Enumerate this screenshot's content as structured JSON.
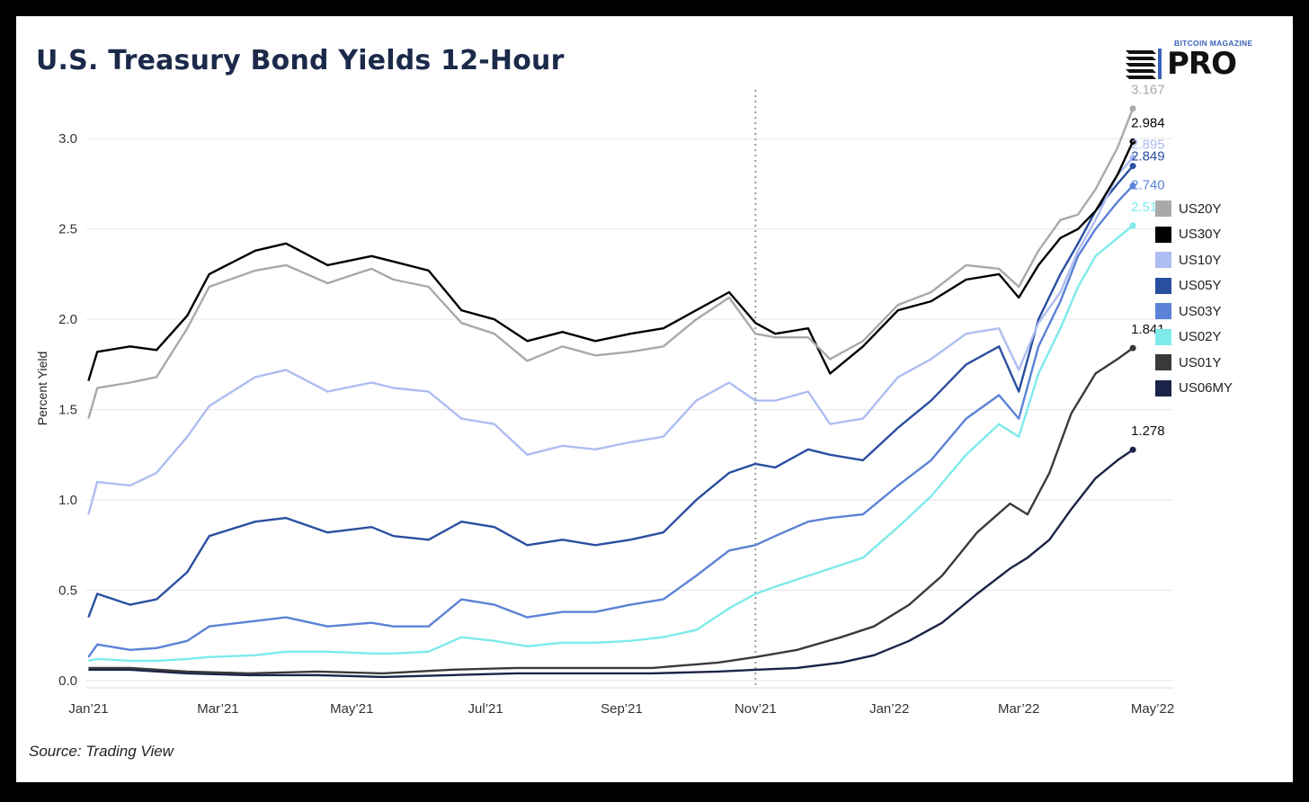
{
  "title": "U.S. Treasury Bond Yields 12-Hour",
  "source": "Source: Trading View",
  "logo": {
    "small_text": "BITCOIN MAGAZINE",
    "big_text": "PRO"
  },
  "colors": {
    "US20Y": "#a9a9a9",
    "US30Y": "#000000",
    "US10Y": "#aebdf2",
    "US05Y": "#2a4fa0",
    "US03Y": "#5b82d6",
    "US02Y": "#7eeaea",
    "US01Y": "#3a3a3a",
    "US06MY": "#1b2448"
  },
  "chart_data": {
    "type": "line",
    "title": "U.S. Treasury Bond Yields 12-Hour",
    "xlabel": "",
    "ylabel": "Percent Yield",
    "ylim": [
      -0.04,
      3.27
    ],
    "yticks": [
      0.0,
      0.5,
      1.0,
      1.5,
      2.0,
      2.5,
      3.0
    ],
    "ytick_labels": [
      "0.0",
      "0.5",
      "1.0",
      "1.5",
      "2.0",
      "2.5",
      "3.0"
    ],
    "xlim": [
      "2020-12-31",
      "2022-05-10"
    ],
    "xticks": [
      "2021-01-01",
      "2021-03-01",
      "2021-05-01",
      "2021-07-01",
      "2021-09-01",
      "2021-11-01",
      "2022-01-01",
      "2022-03-01",
      "2022-05-01"
    ],
    "xtick_labels": [
      "Jan’21",
      "Mar’21",
      "May’21",
      "Jul’21",
      "Sep’21",
      "Nov’21",
      "Jan’22",
      "Mar’22",
      "May’22"
    ],
    "vline": "2021-11-01",
    "grid": true,
    "legend": "right",
    "series": [
      {
        "name": "US20Y",
        "end_label": "3.167",
        "x": [
          "2021-01-01",
          "2021-01-05",
          "2021-01-20",
          "2021-02-01",
          "2021-02-15",
          "2021-02-25",
          "2021-03-18",
          "2021-04-01",
          "2021-04-20",
          "2021-05-10",
          "2021-05-20",
          "2021-06-05",
          "2021-06-20",
          "2021-07-05",
          "2021-07-20",
          "2021-08-05",
          "2021-08-20",
          "2021-09-05",
          "2021-09-20",
          "2021-10-05",
          "2021-10-20",
          "2021-11-01",
          "2021-11-10",
          "2021-11-25",
          "2021-12-05",
          "2021-12-20",
          "2022-01-05",
          "2022-01-20",
          "2022-02-05",
          "2022-02-20",
          "2022-03-01",
          "2022-03-10",
          "2022-03-20",
          "2022-03-28",
          "2022-04-05",
          "2022-04-15",
          "2022-04-22"
        ],
        "y": [
          1.45,
          1.62,
          1.65,
          1.68,
          1.95,
          2.18,
          2.27,
          2.3,
          2.2,
          2.28,
          2.22,
          2.18,
          1.98,
          1.92,
          1.77,
          1.85,
          1.8,
          1.82,
          1.85,
          2.0,
          2.12,
          1.92,
          1.9,
          1.9,
          1.78,
          1.88,
          2.08,
          2.15,
          2.3,
          2.28,
          2.18,
          2.38,
          2.55,
          2.58,
          2.72,
          2.95,
          3.167
        ]
      },
      {
        "name": "US30Y",
        "end_label": "2.984",
        "x": [
          "2021-01-01",
          "2021-01-05",
          "2021-01-20",
          "2021-02-01",
          "2021-02-15",
          "2021-02-25",
          "2021-03-18",
          "2021-04-01",
          "2021-04-20",
          "2021-05-10",
          "2021-05-20",
          "2021-06-05",
          "2021-06-20",
          "2021-07-05",
          "2021-07-20",
          "2021-08-05",
          "2021-08-20",
          "2021-09-05",
          "2021-09-20",
          "2021-10-05",
          "2021-10-20",
          "2021-11-01",
          "2021-11-10",
          "2021-11-25",
          "2021-12-05",
          "2021-12-20",
          "2022-01-05",
          "2022-01-20",
          "2022-02-05",
          "2022-02-20",
          "2022-03-01",
          "2022-03-10",
          "2022-03-20",
          "2022-03-28",
          "2022-04-05",
          "2022-04-15",
          "2022-04-22"
        ],
        "y": [
          1.66,
          1.82,
          1.85,
          1.83,
          2.02,
          2.25,
          2.38,
          2.42,
          2.3,
          2.35,
          2.32,
          2.27,
          2.05,
          2.0,
          1.88,
          1.93,
          1.88,
          1.92,
          1.95,
          2.05,
          2.15,
          1.98,
          1.92,
          1.95,
          1.7,
          1.85,
          2.05,
          2.1,
          2.22,
          2.25,
          2.12,
          2.3,
          2.45,
          2.5,
          2.6,
          2.8,
          2.984
        ]
      },
      {
        "name": "US10Y",
        "end_label": "2.895",
        "x": [
          "2021-01-01",
          "2021-01-05",
          "2021-01-20",
          "2021-02-01",
          "2021-02-15",
          "2021-02-25",
          "2021-03-18",
          "2021-04-01",
          "2021-04-20",
          "2021-05-10",
          "2021-05-20",
          "2021-06-05",
          "2021-06-20",
          "2021-07-05",
          "2021-07-20",
          "2021-08-05",
          "2021-08-20",
          "2021-09-05",
          "2021-09-20",
          "2021-10-05",
          "2021-10-20",
          "2021-11-01",
          "2021-11-10",
          "2021-11-25",
          "2021-12-05",
          "2021-12-20",
          "2022-01-05",
          "2022-01-20",
          "2022-02-05",
          "2022-02-20",
          "2022-03-01",
          "2022-03-10",
          "2022-03-20",
          "2022-03-28",
          "2022-04-05",
          "2022-04-15",
          "2022-04-22"
        ],
        "y": [
          0.92,
          1.1,
          1.08,
          1.15,
          1.35,
          1.52,
          1.68,
          1.72,
          1.6,
          1.65,
          1.62,
          1.6,
          1.45,
          1.42,
          1.25,
          1.3,
          1.28,
          1.32,
          1.35,
          1.55,
          1.65,
          1.55,
          1.55,
          1.6,
          1.42,
          1.45,
          1.68,
          1.78,
          1.92,
          1.95,
          1.72,
          1.98,
          2.15,
          2.38,
          2.55,
          2.8,
          2.895
        ]
      },
      {
        "name": "US05Y",
        "end_label": "2.849",
        "x": [
          "2021-01-01",
          "2021-01-05",
          "2021-01-20",
          "2021-02-01",
          "2021-02-15",
          "2021-02-25",
          "2021-03-18",
          "2021-04-01",
          "2021-04-20",
          "2021-05-10",
          "2021-05-20",
          "2021-06-05",
          "2021-06-20",
          "2021-07-05",
          "2021-07-20",
          "2021-08-05",
          "2021-08-20",
          "2021-09-05",
          "2021-09-20",
          "2021-10-05",
          "2021-10-20",
          "2021-11-01",
          "2021-11-10",
          "2021-11-25",
          "2021-12-05",
          "2021-12-20",
          "2022-01-05",
          "2022-01-20",
          "2022-02-05",
          "2022-02-20",
          "2022-03-01",
          "2022-03-10",
          "2022-03-20",
          "2022-03-28",
          "2022-04-05",
          "2022-04-15",
          "2022-04-22"
        ],
        "y": [
          0.35,
          0.48,
          0.42,
          0.45,
          0.6,
          0.8,
          0.88,
          0.9,
          0.82,
          0.85,
          0.8,
          0.78,
          0.88,
          0.85,
          0.75,
          0.78,
          0.75,
          0.78,
          0.82,
          1.0,
          1.15,
          1.2,
          1.18,
          1.28,
          1.25,
          1.22,
          1.4,
          1.55,
          1.75,
          1.85,
          1.6,
          2.0,
          2.25,
          2.42,
          2.6,
          2.75,
          2.849
        ]
      },
      {
        "name": "US03Y",
        "end_label": "2.740",
        "x": [
          "2021-01-01",
          "2021-01-05",
          "2021-01-20",
          "2021-02-01",
          "2021-02-15",
          "2021-02-25",
          "2021-03-18",
          "2021-04-01",
          "2021-04-20",
          "2021-05-10",
          "2021-05-20",
          "2021-06-05",
          "2021-06-20",
          "2021-07-05",
          "2021-07-20",
          "2021-08-05",
          "2021-08-20",
          "2021-09-05",
          "2021-09-20",
          "2021-10-05",
          "2021-10-20",
          "2021-11-01",
          "2021-11-10",
          "2021-11-25",
          "2021-12-05",
          "2021-12-20",
          "2022-01-05",
          "2022-01-20",
          "2022-02-05",
          "2022-02-20",
          "2022-03-01",
          "2022-03-10",
          "2022-03-20",
          "2022-03-28",
          "2022-04-05",
          "2022-04-15",
          "2022-04-22"
        ],
        "y": [
          0.13,
          0.2,
          0.17,
          0.18,
          0.22,
          0.3,
          0.33,
          0.35,
          0.3,
          0.32,
          0.3,
          0.3,
          0.45,
          0.42,
          0.35,
          0.38,
          0.38,
          0.42,
          0.45,
          0.58,
          0.72,
          0.75,
          0.8,
          0.88,
          0.9,
          0.92,
          1.08,
          1.22,
          1.45,
          1.58,
          1.45,
          1.85,
          2.1,
          2.35,
          2.5,
          2.65,
          2.74
        ]
      },
      {
        "name": "US02Y",
        "end_label": "2.519",
        "x": [
          "2021-01-01",
          "2021-01-05",
          "2021-01-20",
          "2021-02-01",
          "2021-02-15",
          "2021-02-25",
          "2021-03-18",
          "2021-04-01",
          "2021-04-20",
          "2021-05-10",
          "2021-05-20",
          "2021-06-05",
          "2021-06-20",
          "2021-07-05",
          "2021-07-20",
          "2021-08-05",
          "2021-08-20",
          "2021-09-05",
          "2021-09-20",
          "2021-10-05",
          "2021-10-20",
          "2021-11-01",
          "2021-11-10",
          "2021-11-25",
          "2021-12-05",
          "2021-12-20",
          "2022-01-05",
          "2022-01-20",
          "2022-02-05",
          "2022-02-20",
          "2022-03-01",
          "2022-03-10",
          "2022-03-20",
          "2022-03-28",
          "2022-04-05",
          "2022-04-15",
          "2022-04-22"
        ],
        "y": [
          0.11,
          0.12,
          0.11,
          0.11,
          0.12,
          0.13,
          0.14,
          0.16,
          0.16,
          0.15,
          0.15,
          0.16,
          0.24,
          0.22,
          0.19,
          0.21,
          0.21,
          0.22,
          0.24,
          0.28,
          0.4,
          0.48,
          0.52,
          0.58,
          0.62,
          0.68,
          0.85,
          1.02,
          1.25,
          1.42,
          1.35,
          1.7,
          1.95,
          2.18,
          2.35,
          2.45,
          2.519
        ]
      },
      {
        "name": "US01Y",
        "end_label": "1.841",
        "x": [
          "2021-01-01",
          "2021-01-20",
          "2021-02-15",
          "2021-03-15",
          "2021-04-15",
          "2021-05-15",
          "2021-06-15",
          "2021-07-15",
          "2021-08-15",
          "2021-09-15",
          "2021-10-15",
          "2021-11-01",
          "2021-11-20",
          "2021-12-10",
          "2021-12-25",
          "2022-01-10",
          "2022-01-25",
          "2022-02-10",
          "2022-02-25",
          "2022-03-05",
          "2022-03-15",
          "2022-03-25",
          "2022-04-05",
          "2022-04-15",
          "2022-04-22"
        ],
        "y": [
          0.07,
          0.07,
          0.05,
          0.04,
          0.05,
          0.04,
          0.06,
          0.07,
          0.07,
          0.07,
          0.1,
          0.13,
          0.17,
          0.24,
          0.3,
          0.42,
          0.58,
          0.82,
          0.98,
          0.92,
          1.15,
          1.48,
          1.7,
          1.78,
          1.841
        ]
      },
      {
        "name": "US06MY",
        "end_label": "1.278",
        "x": [
          "2021-01-01",
          "2021-01-20",
          "2021-02-15",
          "2021-03-15",
          "2021-04-15",
          "2021-05-15",
          "2021-06-15",
          "2021-07-15",
          "2021-08-15",
          "2021-09-15",
          "2021-10-15",
          "2021-11-01",
          "2021-11-20",
          "2021-12-10",
          "2021-12-25",
          "2022-01-10",
          "2022-01-25",
          "2022-02-10",
          "2022-02-25",
          "2022-03-05",
          "2022-03-15",
          "2022-03-25",
          "2022-04-05",
          "2022-04-15",
          "2022-04-22"
        ],
        "y": [
          0.06,
          0.06,
          0.04,
          0.03,
          0.03,
          0.02,
          0.03,
          0.04,
          0.04,
          0.04,
          0.05,
          0.06,
          0.07,
          0.1,
          0.14,
          0.22,
          0.32,
          0.48,
          0.62,
          0.68,
          0.78,
          0.95,
          1.12,
          1.22,
          1.278
        ]
      }
    ]
  }
}
